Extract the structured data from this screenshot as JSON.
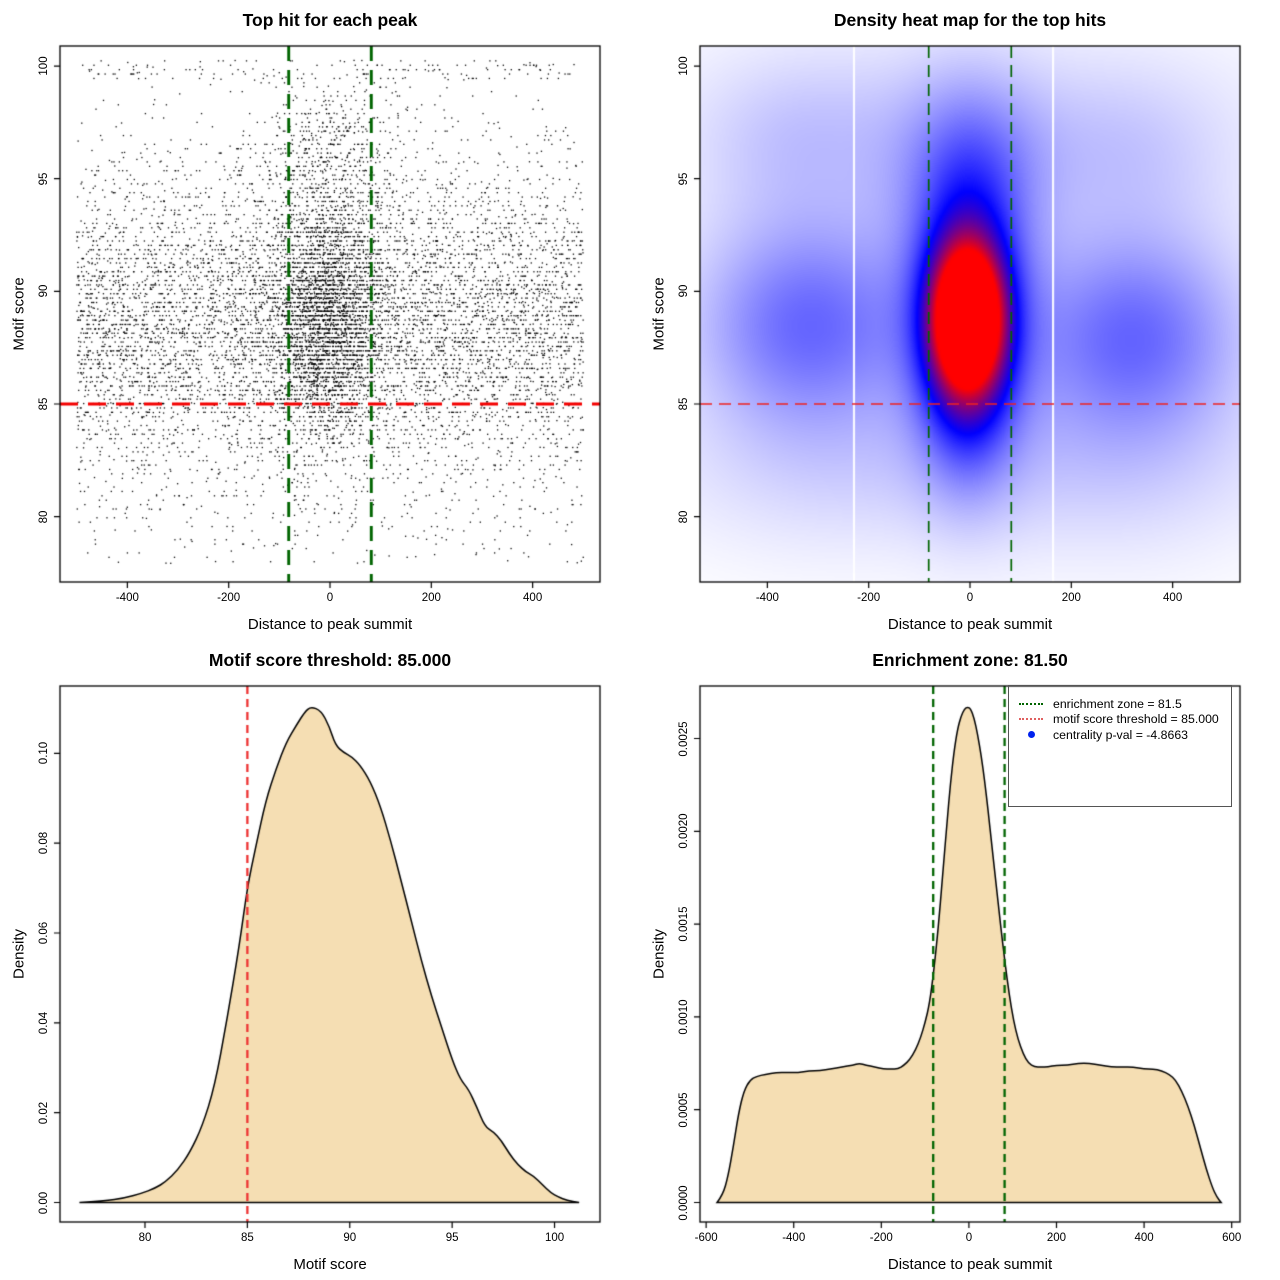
{
  "figure": {
    "background": "#ffffff",
    "motif_score_threshold": "85.000",
    "enrichment_zone": "81.50",
    "centrality_p_val": "-4.8663"
  },
  "chart_data": [
    {
      "type": "scatter",
      "title": "Top hit for each peak",
      "xlabel": "Distance to peak summit",
      "ylabel": "Motif score",
      "xlim": [
        -533,
        533
      ],
      "ylim": [
        77.1,
        100.89
      ],
      "xticks": {
        "values": [
          -400,
          -200,
          0,
          200,
          400
        ],
        "labels": [
          "-400",
          "-200",
          "0",
          "200",
          "400"
        ]
      },
      "yticks": {
        "values": [
          80,
          85,
          90,
          95,
          100
        ],
        "labels": [
          "80",
          "85",
          "90",
          "95",
          "100"
        ]
      },
      "grid": false,
      "point_color": "rgba(0,0,0,0.95)",
      "point_gen": {
        "seed": 1337,
        "quantize": {
          "step": 0.195,
          "prob": 0.72
        },
        "components": [
          {
            "n": 5600,
            "x": [
              "u",
              -500,
              500
            ],
            "y": [
              "g",
              88.6,
              3.3
            ],
            "yclip": [
              77.9,
              100.3
            ]
          },
          {
            "n": 1500,
            "x": [
              "u",
              -500,
              500
            ],
            "y": [
              "g",
              88.2,
              5.3
            ],
            "yclip": [
              77.9,
              100.3
            ]
          },
          {
            "n": 2900,
            "x": [
              "g",
              -8,
              60
            ],
            "xclip": [
              -185,
              185
            ],
            "y": [
              "g",
              88.8,
              2.8
            ],
            "yclip": [
              80.5,
              98.6
            ]
          },
          {
            "n": 460,
            "x": [
              "g",
              -8,
              78
            ],
            "xclip": [
              -210,
              210
            ],
            "y": [
              "g",
              96.3,
              1.7
            ],
            "yclip": [
              92.5,
              100.3
            ]
          },
          {
            "n": 150,
            "x": [
              "u",
              -490,
              490
            ],
            "y": [
              "u",
              99.35,
              100.25
            ]
          },
          {
            "n": 90,
            "x": [
              "u",
              -500,
              500
            ],
            "y": [
              "u",
              77.9,
              80.6
            ]
          }
        ]
      },
      "ref_lines": [
        {
          "name": "enrichment-zone-left",
          "orient": "v",
          "value": -81.5,
          "color": "#006400",
          "width": 2.9,
          "dash": [
            15,
            9
          ]
        },
        {
          "name": "enrichment-zone-right",
          "orient": "v",
          "value": 81.5,
          "color": "#006400",
          "width": 2.9,
          "dash": [
            15,
            9
          ]
        },
        {
          "name": "motif-score-threshold",
          "orient": "h",
          "value": 85,
          "color": "#f40000",
          "width": 2.9,
          "dash": [
            18,
            10
          ]
        }
      ]
    },
    {
      "type": "heatmap",
      "title": "Density heat map for the top hits",
      "xlabel": "Distance to peak summit",
      "ylabel": "Motif score",
      "xlim": [
        -533,
        533
      ],
      "ylim": [
        77.1,
        100.89
      ],
      "xticks": {
        "values": [
          -400,
          -200,
          0,
          200,
          400
        ],
        "labels": [
          "-400",
          "-200",
          "0",
          "200",
          "400"
        ]
      },
      "yticks": {
        "values": [
          80,
          85,
          90,
          95,
          100
        ],
        "labels": [
          "80",
          "85",
          "90",
          "95",
          "100"
        ]
      },
      "colormap": [
        "#ffffff",
        "#0000ff",
        "#ff0000"
      ],
      "gap_lines": [
        -229,
        164
      ],
      "kernels": [
        {
          "A": 0.9,
          "cx": -5,
          "cy": 88.8,
          "sx": 45,
          "sy": 2.05
        },
        {
          "A": 0.55,
          "cx": -5,
          "cy": 88.2,
          "sx": 60,
          "sy": 3.4
        },
        {
          "A": 0.32,
          "cx": 0,
          "cy": 89.8,
          "sx": 85,
          "sy": 4.8
        },
        {
          "A": 0.13,
          "cx": 0,
          "cy": 95.6,
          "sx": 110,
          "sy": 2.6
        },
        {
          "A": 0.2,
          "cx": -315,
          "cy": 88.4,
          "sx": 150,
          "sy": 2.9
        },
        {
          "A": 0.2,
          "cx": 320,
          "cy": 87.9,
          "sx": 145,
          "sy": 2.9
        },
        {
          "A": 0.1,
          "cx": -315,
          "cy": 89.8,
          "sx": 175,
          "sy": 5.6
        },
        {
          "A": 0.1,
          "cx": 320,
          "cy": 88.6,
          "sx": 175,
          "sy": 5.6
        },
        {
          "A": 0.07,
          "cx": 0,
          "cy": 82.2,
          "sx": 430,
          "sy": 2.7
        },
        {
          "A": 0.055,
          "cx": 0,
          "cy": 97.9,
          "sx": 430,
          "sy": 2.9
        },
        {
          "A": 0.045,
          "cx": -340,
          "cy": 96.8,
          "sx": 130,
          "sy": 2.2
        },
        {
          "A": 0.045,
          "cx": 300,
          "cy": 96.2,
          "sx": 130,
          "sy": 2.2
        }
      ],
      "ref_lines": [
        {
          "name": "enrichment-zone-left",
          "orient": "v",
          "value": -81.5,
          "color": "#006400",
          "width": 1.7,
          "dash": [
            12,
            7
          ]
        },
        {
          "name": "enrichment-zone-right",
          "orient": "v",
          "value": 81.5,
          "color": "#006400",
          "width": 1.7,
          "dash": [
            12,
            7
          ]
        },
        {
          "name": "motif-score-threshold",
          "orient": "h",
          "value": 85,
          "color": "#ee2222",
          "width": 1.5,
          "dash": [
            12,
            7
          ]
        }
      ]
    },
    {
      "type": "area",
      "title": "Motif score threshold: 85.000",
      "xlabel": "Motif score",
      "ylabel": "Density",
      "xlim": [
        75.85,
        102.22
      ],
      "ylim": [
        -0.00434,
        0.11499
      ],
      "xticks": {
        "values": [
          80,
          85,
          90,
          95,
          100
        ],
        "labels": [
          "80",
          "85",
          "90",
          "95",
          "100"
        ]
      },
      "yticks": {
        "values": [
          0.0,
          0.02,
          0.04,
          0.06,
          0.08,
          0.1
        ],
        "labels": [
          "0.00",
          "0.02",
          "0.04",
          "0.06",
          "0.08",
          "0.10"
        ]
      },
      "fill": "#f5deb3",
      "stroke": "#000000",
      "curve": [
        [
          76.8,
          0
        ],
        [
          78,
          0.0003
        ],
        [
          79,
          0.001
        ],
        [
          79.8,
          0.002
        ],
        [
          80.5,
          0.0032
        ],
        [
          81,
          0.0046
        ],
        [
          81.6,
          0.0072
        ],
        [
          82.2,
          0.0112
        ],
        [
          82.8,
          0.017
        ],
        [
          83.4,
          0.0258
        ],
        [
          84,
          0.0406
        ],
        [
          84.6,
          0.057
        ],
        [
          85,
          0.0702
        ],
        [
          85.4,
          0.079
        ],
        [
          85.9,
          0.0895
        ],
        [
          86.4,
          0.0965
        ],
        [
          86.9,
          0.1025
        ],
        [
          87.4,
          0.1063
        ],
        [
          87.8,
          0.1092
        ],
        [
          88.1,
          0.1104
        ],
        [
          88.6,
          0.1095
        ],
        [
          89,
          0.106
        ],
        [
          89.3,
          0.1018
        ],
        [
          89.7,
          0.1002
        ],
        [
          90.1,
          0.0992
        ],
        [
          90.5,
          0.0974
        ],
        [
          91,
          0.0938
        ],
        [
          91.5,
          0.0882
        ],
        [
          92,
          0.0805
        ],
        [
          92.5,
          0.0718
        ],
        [
          93,
          0.0628
        ],
        [
          93.5,
          0.0538
        ],
        [
          94,
          0.0458
        ],
        [
          94.5,
          0.0388
        ],
        [
          95,
          0.0318
        ],
        [
          95.4,
          0.0274
        ],
        [
          95.8,
          0.0252
        ],
        [
          96.2,
          0.0213
        ],
        [
          96.6,
          0.0169
        ],
        [
          97,
          0.0158
        ],
        [
          97.4,
          0.0138
        ],
        [
          97.8,
          0.0108
        ],
        [
          98.2,
          0.0085
        ],
        [
          98.6,
          0.0068
        ],
        [
          99,
          0.0058
        ],
        [
          99.4,
          0.004
        ],
        [
          99.8,
          0.0022
        ],
        [
          100.2,
          0.0012
        ],
        [
          100.6,
          0.0005
        ],
        [
          101.2,
          0
        ]
      ],
      "ref_lines": [
        {
          "name": "motif-score-threshold",
          "orient": "v",
          "value": 85,
          "color": "#ee3333",
          "width": 2.3,
          "dash": [
            8,
            5
          ]
        }
      ]
    },
    {
      "type": "area",
      "title": "Enrichment zone: 81.50",
      "xlabel": "Distance to peak summit",
      "ylabel": "Density",
      "xlim": [
        -614,
        619
      ],
      "ylim": [
        -0.000105,
        0.002783
      ],
      "xticks": {
        "values": [
          -600,
          -400,
          -200,
          0,
          200,
          400,
          600
        ],
        "labels": [
          "-600",
          "-400",
          "-200",
          "0",
          "200",
          "400",
          "600"
        ]
      },
      "yticks": {
        "values": [
          0.0,
          0.0005,
          0.001,
          0.0015,
          0.002,
          0.0025
        ],
        "labels": [
          "0.0000",
          "0.0005",
          "0.0010",
          "0.0015",
          "0.0020",
          "0.0025"
        ]
      },
      "fill": "#f5deb3",
      "stroke": "#000000",
      "curve": [
        [
          -575,
          0
        ],
        [
          -562,
          4e-05
        ],
        [
          -550,
          0.00014
        ],
        [
          -538,
          0.0003
        ],
        [
          -526,
          0.00048
        ],
        [
          -514,
          0.0006
        ],
        [
          -500,
          0.00066
        ],
        [
          -485,
          0.00068
        ],
        [
          -465,
          0.00069
        ],
        [
          -440,
          0.0007
        ],
        [
          -415,
          0.0007
        ],
        [
          -390,
          0.0007
        ],
        [
          -365,
          0.00071
        ],
        [
          -340,
          0.00071
        ],
        [
          -315,
          0.00072
        ],
        [
          -290,
          0.00073
        ],
        [
          -265,
          0.00074
        ],
        [
          -250,
          0.00075
        ],
        [
          -235,
          0.00074
        ],
        [
          -215,
          0.00073
        ],
        [
          -195,
          0.00072
        ],
        [
          -178,
          0.00072
        ],
        [
          -162,
          0.00072
        ],
        [
          -148,
          0.00074
        ],
        [
          -135,
          0.00077
        ],
        [
          -122,
          0.00082
        ],
        [
          -110,
          0.00089
        ],
        [
          -100,
          0.00097
        ],
        [
          -90,
          0.00107
        ],
        [
          -80,
          0.00125
        ],
        [
          -70,
          0.00148
        ],
        [
          -60,
          0.00176
        ],
        [
          -50,
          0.00205
        ],
        [
          -42,
          0.00226
        ],
        [
          -34,
          0.00243
        ],
        [
          -26,
          0.00255
        ],
        [
          -18,
          0.00262
        ],
        [
          -10,
          0.00266
        ],
        [
          -3,
          0.00267
        ],
        [
          4,
          0.00266
        ],
        [
          12,
          0.00261
        ],
        [
          20,
          0.00252
        ],
        [
          28,
          0.00241
        ],
        [
          36,
          0.00227
        ],
        [
          44,
          0.00211
        ],
        [
          52,
          0.00193
        ],
        [
          62,
          0.00172
        ],
        [
          72,
          0.0015
        ],
        [
          82,
          0.0013
        ],
        [
          92,
          0.00112
        ],
        [
          102,
          0.00098
        ],
        [
          112,
          0.00088
        ],
        [
          124,
          0.0008
        ],
        [
          136,
          0.00075
        ],
        [
          150,
          0.00073
        ],
        [
          165,
          0.00073
        ],
        [
          180,
          0.00073
        ],
        [
          200,
          0.00074
        ],
        [
          225,
          0.00074
        ],
        [
          250,
          0.00075
        ],
        [
          275,
          0.00075
        ],
        [
          300,
          0.00074
        ],
        [
          325,
          0.00073
        ],
        [
          350,
          0.00073
        ],
        [
          375,
          0.00073
        ],
        [
          400,
          0.00072
        ],
        [
          420,
          0.00072
        ],
        [
          440,
          0.00071
        ],
        [
          458,
          0.00069
        ],
        [
          472,
          0.00066
        ],
        [
          486,
          0.0006
        ],
        [
          500,
          0.00052
        ],
        [
          514,
          0.00042
        ],
        [
          528,
          0.0003
        ],
        [
          542,
          0.00018
        ],
        [
          556,
          8e-05
        ],
        [
          566,
          3e-05
        ],
        [
          576,
          0
        ]
      ],
      "ref_lines": [
        {
          "name": "enrichment-zone-left",
          "orient": "v",
          "value": -81.5,
          "color": "#006400",
          "width": 2.3,
          "dash": [
            8,
            5
          ]
        },
        {
          "name": "enrichment-zone-right",
          "orient": "v",
          "value": 81.5,
          "color": "#006400",
          "width": 2.3,
          "dash": [
            8,
            5
          ]
        }
      ],
      "legend": {
        "items": [
          {
            "swatch": "dotted-line",
            "color": "#006400",
            "label": "enrichment zone = 81.5"
          },
          {
            "swatch": "dotted-line",
            "color": "#e06060",
            "label": "motif score threshold = 85.000"
          },
          {
            "swatch": "dot",
            "color": "#0022ee",
            "label": "centrality p-val = -4.8663"
          }
        ]
      }
    }
  ]
}
